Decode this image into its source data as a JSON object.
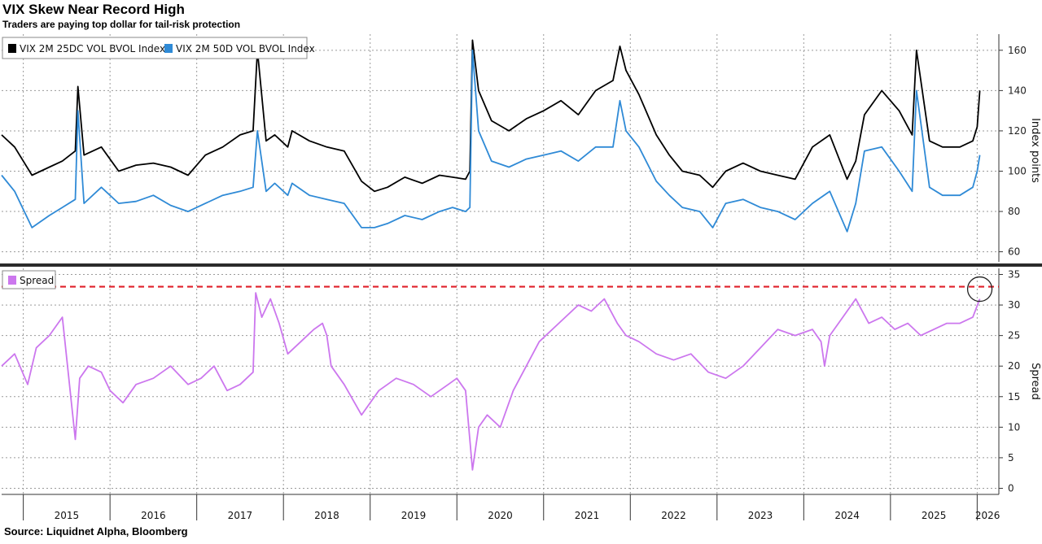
{
  "header": {
    "title": "VIX Skew Near Record High",
    "subtitle": "Traders are paying top dollar for tail-risk protection"
  },
  "footer": {
    "source": "Source: Liquidnet Alpha, Bloomberg"
  },
  "colors": {
    "series_black": "#000000",
    "series_blue": "#2f8ad6",
    "spread": "#cc77ee",
    "threshold": "#e0202a",
    "grid": "#9a9a9a"
  },
  "chart_data": [
    {
      "type": "line",
      "panel": "top",
      "ylabel": "Index points",
      "ylim": [
        55,
        168
      ],
      "yticks": [
        60,
        80,
        100,
        120,
        140,
        160
      ],
      "grid": true,
      "legend": "top-left",
      "x_range": [
        2014.75,
        2026.25
      ],
      "x_year_labels": [
        "2015",
        "2016",
        "2017",
        "2018",
        "2019",
        "2020",
        "2021",
        "2022",
        "2023",
        "2024",
        "2025",
        "2026"
      ],
      "series": [
        {
          "name": "VIX 2M 25DC VOL BVOL Index",
          "color": "#000000",
          "x": [
            2014.75,
            2014.9,
            2015.1,
            2015.3,
            2015.45,
            2015.6,
            2015.63,
            2015.7,
            2015.9,
            2016.1,
            2016.3,
            2016.5,
            2016.7,
            2016.9,
            2017.1,
            2017.3,
            2017.5,
            2017.65,
            2017.7,
            2017.8,
            2017.9,
            2018.05,
            2018.1,
            2018.3,
            2018.5,
            2018.7,
            2018.9,
            2019.05,
            2019.2,
            2019.4,
            2019.6,
            2019.8,
            2019.95,
            2020.1,
            2020.15,
            2020.18,
            2020.25,
            2020.4,
            2020.6,
            2020.8,
            2021.0,
            2021.2,
            2021.4,
            2021.6,
            2021.8,
            2021.88,
            2021.95,
            2022.1,
            2022.3,
            2022.45,
            2022.6,
            2022.8,
            2022.95,
            2023.1,
            2023.3,
            2023.5,
            2023.7,
            2023.9,
            2024.1,
            2024.3,
            2024.5,
            2024.6,
            2024.7,
            2024.9,
            2025.1,
            2025.25,
            2025.3,
            2025.45,
            2025.6,
            2025.8,
            2025.95,
            2026.0,
            2026.03
          ],
          "values": [
            118,
            112,
            98,
            102,
            105,
            110,
            142,
            108,
            112,
            100,
            103,
            104,
            102,
            98,
            108,
            112,
            118,
            120,
            160,
            115,
            118,
            112,
            120,
            115,
            112,
            110,
            95,
            90,
            92,
            97,
            94,
            98,
            97,
            96,
            100,
            165,
            140,
            125,
            120,
            126,
            130,
            135,
            128,
            140,
            145,
            162,
            150,
            138,
            118,
            108,
            100,
            98,
            92,
            100,
            104,
            100,
            98,
            96,
            112,
            118,
            96,
            105,
            128,
            140,
            130,
            118,
            160,
            115,
            112,
            112,
            115,
            122,
            140
          ]
        },
        {
          "name": "VIX 2M 50D VOL BVOL Index",
          "color": "#2f8ad6",
          "x": [
            2014.75,
            2014.9,
            2015.1,
            2015.3,
            2015.45,
            2015.6,
            2015.63,
            2015.7,
            2015.9,
            2016.1,
            2016.3,
            2016.5,
            2016.7,
            2016.9,
            2017.1,
            2017.3,
            2017.5,
            2017.65,
            2017.7,
            2017.8,
            2017.9,
            2018.05,
            2018.1,
            2018.3,
            2018.5,
            2018.7,
            2018.9,
            2019.05,
            2019.2,
            2019.4,
            2019.6,
            2019.8,
            2019.95,
            2020.1,
            2020.15,
            2020.18,
            2020.25,
            2020.4,
            2020.6,
            2020.8,
            2021.0,
            2021.2,
            2021.4,
            2021.6,
            2021.8,
            2021.88,
            2021.95,
            2022.1,
            2022.3,
            2022.45,
            2022.6,
            2022.8,
            2022.95,
            2023.1,
            2023.3,
            2023.5,
            2023.7,
            2023.9,
            2024.1,
            2024.3,
            2024.5,
            2024.6,
            2024.7,
            2024.9,
            2025.1,
            2025.25,
            2025.3,
            2025.45,
            2025.6,
            2025.8,
            2025.95,
            2026.0,
            2026.03
          ],
          "values": [
            98,
            90,
            72,
            78,
            82,
            86,
            130,
            84,
            92,
            84,
            85,
            88,
            83,
            80,
            84,
            88,
            90,
            92,
            120,
            90,
            94,
            88,
            94,
            88,
            86,
            84,
            72,
            72,
            74,
            78,
            76,
            80,
            82,
            80,
            82,
            160,
            120,
            105,
            102,
            106,
            108,
            110,
            105,
            112,
            112,
            135,
            120,
            112,
            95,
            88,
            82,
            80,
            72,
            84,
            86,
            82,
            80,
            76,
            84,
            90,
            70,
            84,
            110,
            112,
            100,
            90,
            140,
            92,
            88,
            88,
            92,
            100,
            108
          ]
        }
      ]
    },
    {
      "type": "line",
      "panel": "bottom",
      "ylabel": "Spread",
      "ylim": [
        -1,
        36
      ],
      "yticks": [
        0,
        5,
        10,
        15,
        20,
        25,
        30,
        35
      ],
      "grid": true,
      "legend": "top-left",
      "x_range": [
        2014.75,
        2026.25
      ],
      "threshold": 33,
      "series": [
        {
          "name": "Spread",
          "color": "#cc77ee",
          "x": [
            2014.75,
            2014.9,
            2015.05,
            2015.15,
            2015.3,
            2015.45,
            2015.6,
            2015.65,
            2015.75,
            2015.9,
            2016.0,
            2016.15,
            2016.3,
            2016.5,
            2016.7,
            2016.9,
            2017.05,
            2017.2,
            2017.35,
            2017.5,
            2017.65,
            2017.68,
            2017.75,
            2017.85,
            2017.95,
            2018.05,
            2018.2,
            2018.35,
            2018.45,
            2018.5,
            2018.55,
            2018.7,
            2018.9,
            2019.1,
            2019.3,
            2019.5,
            2019.7,
            2019.9,
            2020.0,
            2020.1,
            2020.18,
            2020.25,
            2020.35,
            2020.5,
            2020.65,
            2020.8,
            2020.95,
            2021.1,
            2021.25,
            2021.4,
            2021.55,
            2021.7,
            2021.85,
            2021.95,
            2022.1,
            2022.3,
            2022.5,
            2022.7,
            2022.9,
            2023.1,
            2023.3,
            2023.5,
            2023.7,
            2023.9,
            2024.1,
            2024.2,
            2024.24,
            2024.3,
            2024.45,
            2024.6,
            2024.75,
            2024.9,
            2025.05,
            2025.2,
            2025.35,
            2025.5,
            2025.65,
            2025.8,
            2025.95,
            2026.03
          ],
          "values": [
            20,
            22,
            17,
            23,
            25,
            28,
            8,
            18,
            20,
            19,
            16,
            14,
            17,
            18,
            20,
            17,
            18,
            20,
            16,
            17,
            19,
            32,
            28,
            31,
            27,
            22,
            24,
            26,
            27,
            25,
            20,
            17,
            12,
            16,
            18,
            17,
            15,
            17,
            18,
            16,
            3,
            10,
            12,
            10,
            16,
            20,
            24,
            26,
            28,
            30,
            29,
            31,
            27,
            25,
            24,
            22,
            21,
            22,
            19,
            18,
            20,
            23,
            26,
            25,
            26,
            24,
            20,
            25,
            28,
            31,
            27,
            28,
            26,
            27,
            25,
            26,
            27,
            27,
            28,
            31
          ]
        }
      ]
    }
  ]
}
